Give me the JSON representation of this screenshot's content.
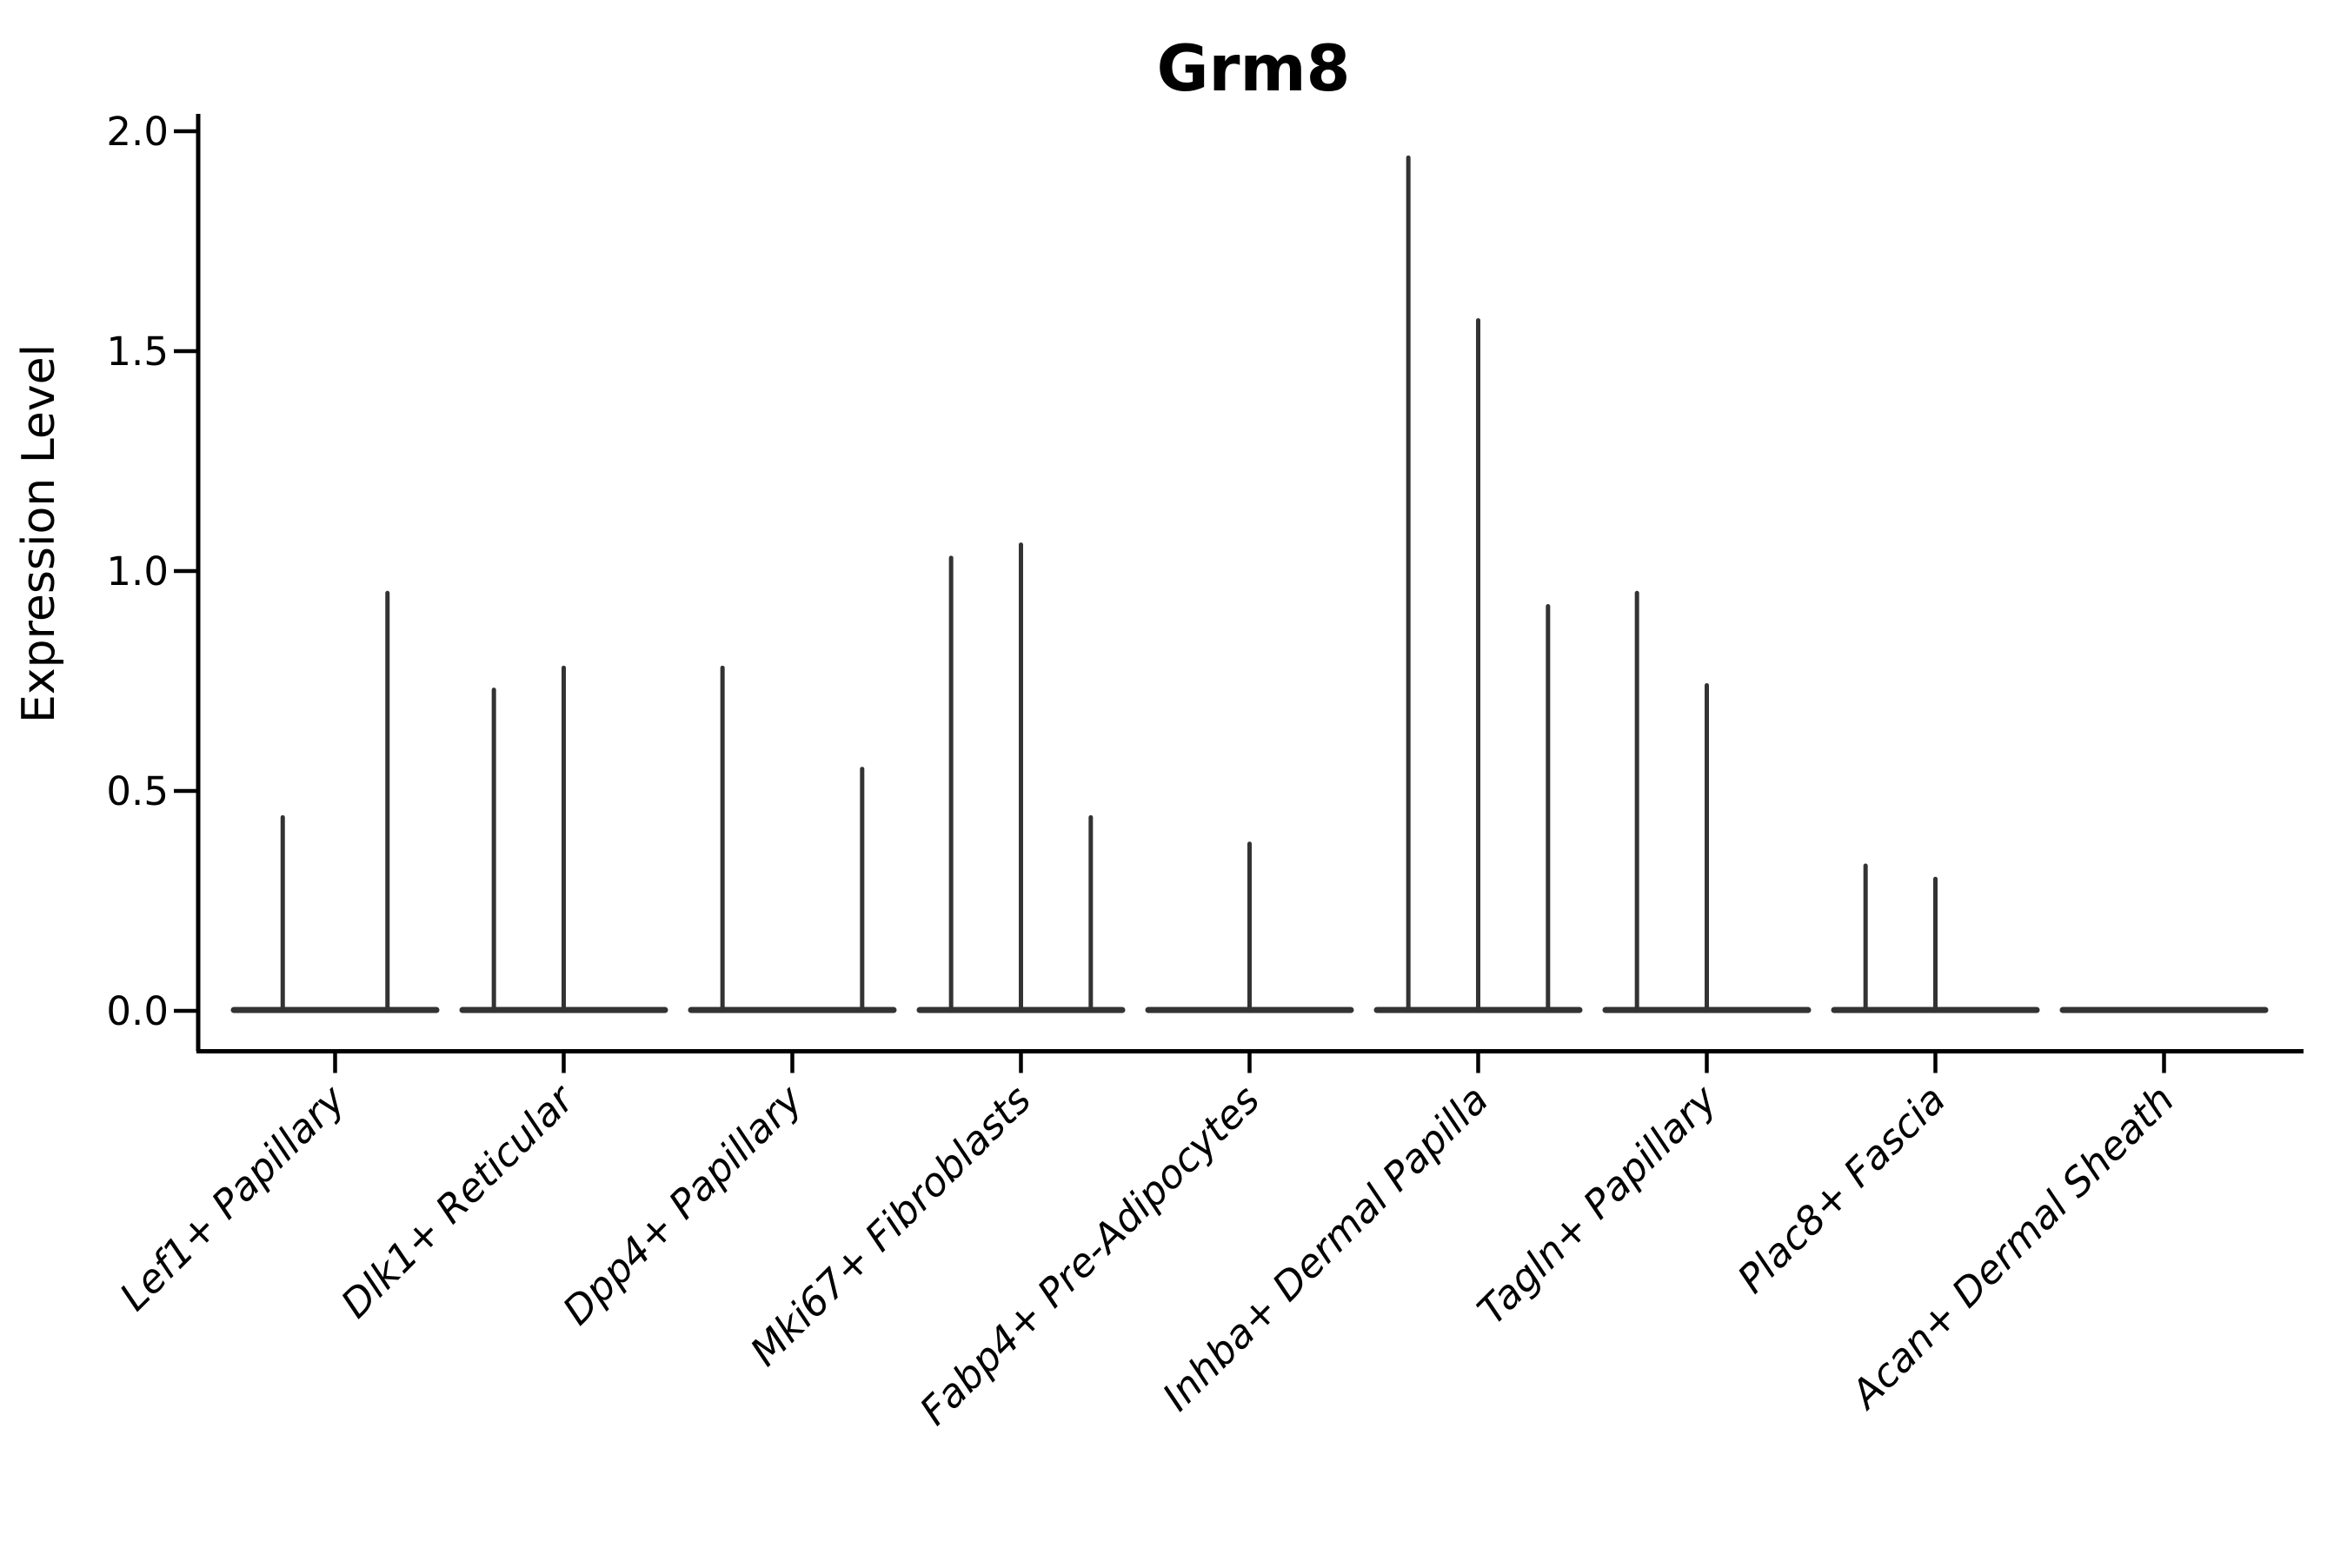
{
  "figure": {
    "title": "Grm8",
    "background_color": "#ffffff"
  },
  "chart_data": {
    "type": "violin",
    "title": "Grm8",
    "xlabel": "",
    "ylabel": "Expression Level",
    "ylim": [
      0.0,
      2.04
    ],
    "yticks": [
      0.0,
      0.5,
      1.0,
      1.5,
      2.0
    ],
    "ytick_labels": [
      "0.0",
      "0.5",
      "1.0",
      "1.5",
      "2.0"
    ],
    "grid": "off",
    "legend": "none",
    "x_tick_label_rotation_deg": 45,
    "categories": [
      "Lef1+ Papillary",
      "Dlk1+ Reticular",
      "Dpp4+ Papillary",
      "Mki67+ Fibroblasts",
      "Fabp4+ Pre-Adipocytes",
      "Inhba+ Dermal Papilla",
      "Tagln+ Papillary",
      "Plac8+ Fascia",
      "Acan+ Dermal Sheath"
    ],
    "description": "Violin plot of Grm8 expression; each group shows flat collapsed violins at 0 with thin spikes up to the maximum expression of the few expressing cells.",
    "groups": [
      {
        "label": "Lef1+ Papillary",
        "n_violins": 2,
        "spikes": [
          {
            "violin": 1,
            "max": 0.44
          },
          {
            "violin": 2,
            "max": 0.95
          }
        ]
      },
      {
        "label": "Dlk1+ Reticular",
        "n_violins": 3,
        "spikes": [
          {
            "violin": 1,
            "max": 0.73
          },
          {
            "violin": 2,
            "max": 0.78
          }
        ]
      },
      {
        "label": "Dpp4+ Papillary",
        "n_violins": 3,
        "spikes": [
          {
            "violin": 1,
            "max": 0.78
          },
          {
            "violin": 3,
            "max": 0.55
          }
        ]
      },
      {
        "label": "Mki67+ Fibroblasts",
        "n_violins": 3,
        "spikes": [
          {
            "violin": 1,
            "max": 1.03
          },
          {
            "violin": 2,
            "max": 1.06
          },
          {
            "violin": 3,
            "max": 0.44
          }
        ]
      },
      {
        "label": "Fabp4+ Pre-Adipocytes",
        "n_violins": 3,
        "spikes": [
          {
            "violin": 2,
            "max": 0.38
          }
        ]
      },
      {
        "label": "Inhba+ Dermal Papilla",
        "n_violins": 3,
        "spikes": [
          {
            "violin": 1,
            "max": 1.94
          },
          {
            "violin": 2,
            "max": 1.57
          },
          {
            "violin": 3,
            "max": 0.92
          }
        ]
      },
      {
        "label": "Tagln+ Papillary",
        "n_violins": 3,
        "spikes": [
          {
            "violin": 1,
            "max": 0.95
          },
          {
            "violin": 2,
            "max": 0.74
          }
        ]
      },
      {
        "label": "Plac8+ Fascia",
        "n_violins": 3,
        "spikes": [
          {
            "violin": 1,
            "max": 0.33
          },
          {
            "violin": 2,
            "max": 0.3
          }
        ]
      },
      {
        "label": "Acan+ Dermal Sheath",
        "n_violins": 3,
        "spikes": []
      }
    ],
    "colors": {
      "violin_stroke": "#333333",
      "axis_stroke": "#000000",
      "text": "#000000"
    }
  }
}
